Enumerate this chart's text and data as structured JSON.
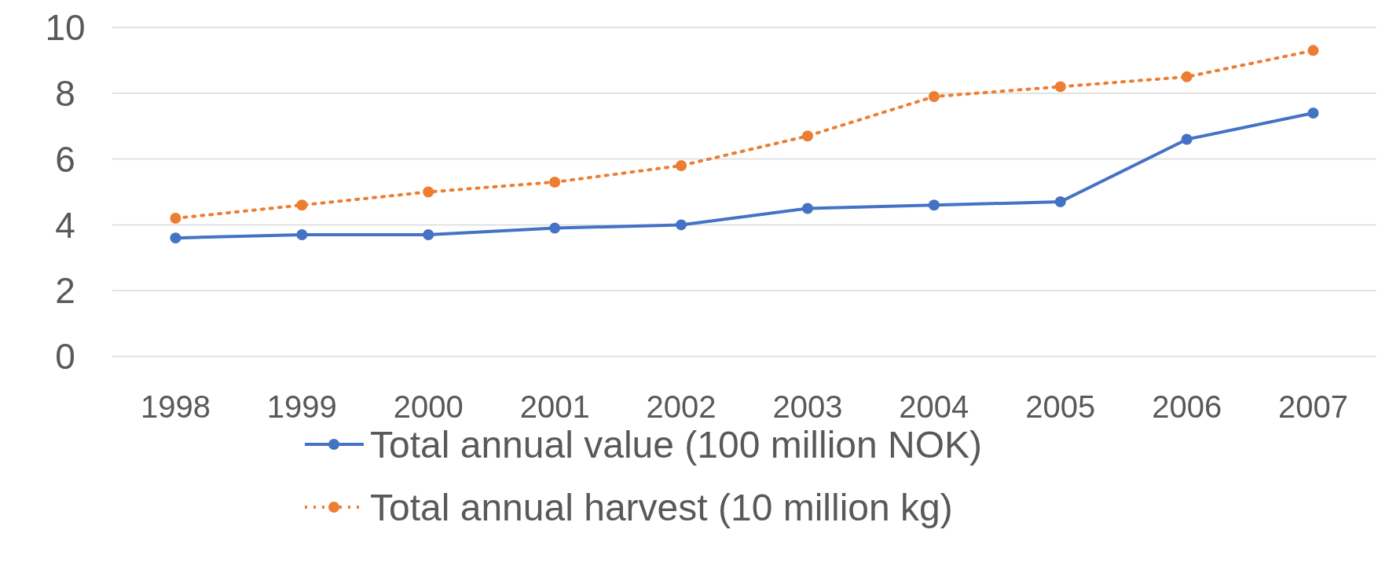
{
  "chart_data": {
    "type": "line",
    "categories": [
      "1998",
      "1999",
      "2000",
      "2001",
      "2002",
      "2003",
      "2004",
      "2005",
      "2006",
      "2007"
    ],
    "series": [
      {
        "name": "Total annual value (100 million NOK)",
        "color": "#4472c4",
        "line_style": "solid",
        "values": [
          3.6,
          3.7,
          3.7,
          3.9,
          4.0,
          4.5,
          4.6,
          4.7,
          6.6,
          7.4
        ]
      },
      {
        "name": "Total annual harvest (10 million kg)",
        "color": "#ed7d31",
        "line_style": "dotted",
        "values": [
          4.2,
          4.6,
          5.0,
          5.3,
          5.8,
          6.7,
          7.9,
          8.2,
          8.5,
          9.3
        ]
      }
    ],
    "ylim": [
      0,
      10
    ],
    "yticks": [
      0,
      2,
      4,
      6,
      8,
      10
    ],
    "grid": "y",
    "legend": "bottom",
    "marker": "circle"
  }
}
